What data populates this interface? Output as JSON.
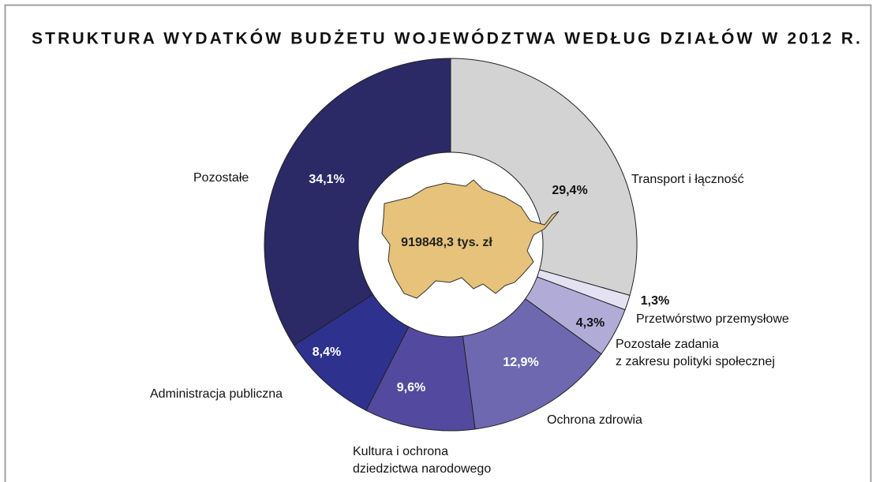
{
  "chart_data": {
    "type": "donut",
    "title": "STRUKTURA  WYDATKÓW  BUDŻETU  WOJEWÓDZTWA  WEDŁUG  DZIAŁÓW  W  2012  R.",
    "center_label": "919848,3 tys. zł",
    "categories": [
      "Transport i łączność",
      "Przetwórstwo przemysłowe",
      "Pozostałe zadania\nz zakresu polityki społecznej",
      "Ochrona zdrowia",
      "Kultura i ochrona\ndziedzictwa narodowego",
      "Administracja publiczna",
      "Pozostałe"
    ],
    "values": [
      29.4,
      1.3,
      4.3,
      12.9,
      9.6,
      8.4,
      34.1
    ],
    "value_labels": [
      "29,4%",
      "1,3%",
      "4,3%",
      "12,9%",
      "9,6%",
      "8,4%",
      "34,1%"
    ],
    "colors": [
      "#d3d3d3",
      "#e4e2f2",
      "#b1acd7",
      "#6e68b0",
      "#534a9f",
      "#2f318f",
      "#2b2966"
    ]
  }
}
